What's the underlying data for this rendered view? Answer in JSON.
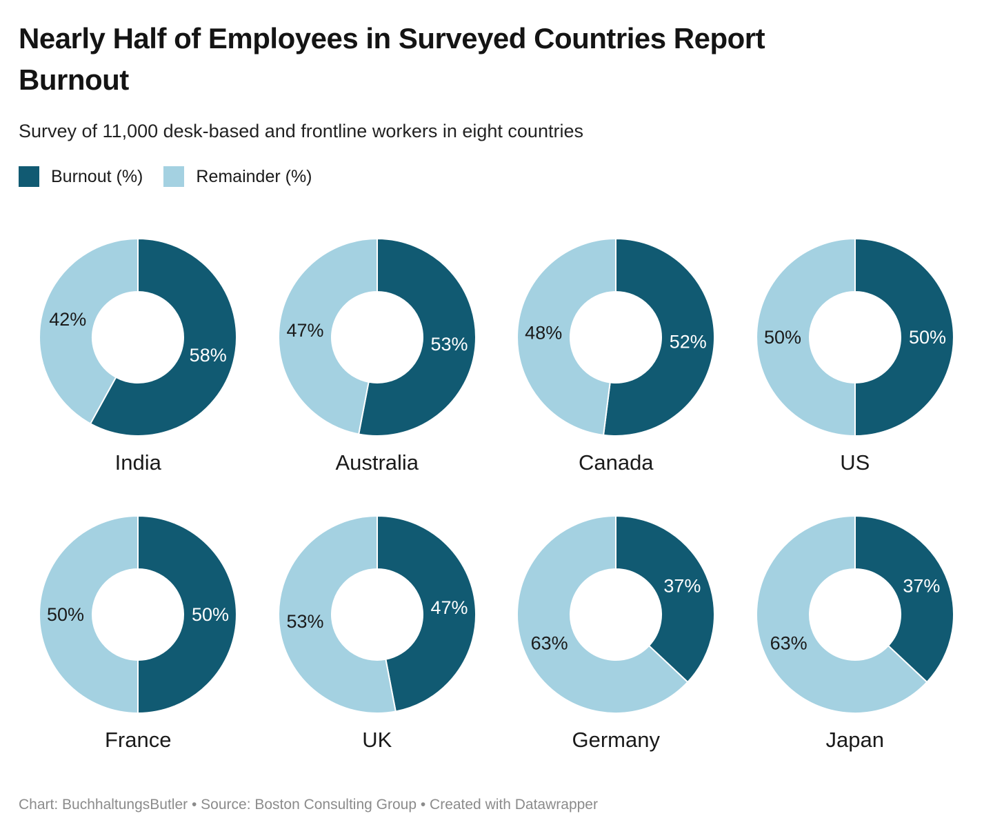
{
  "header": {
    "title": "Nearly Half of Employees in Surveyed Countries Report Burnout",
    "title_lines": [
      "Nearly Half of Employees in Surveyed Countries Report",
      "Burnout"
    ],
    "subtitle": "Survey of 11,000 desk-based and frontline workers in eight countries"
  },
  "legend": {
    "items": [
      {
        "key": "burnout",
        "label": "Burnout (%)",
        "color": "#115a72"
      },
      {
        "key": "remainder",
        "label": "Remainder (%)",
        "color": "#a4d1e1"
      }
    ]
  },
  "footer": {
    "text": "Chart: BuchhaltungsButler • Source: Boston Consulting Group • Created with Datawrapper"
  },
  "chart_data": {
    "type": "pie",
    "variant": "donut_small_multiples",
    "title": "Nearly Half of Employees in Surveyed Countries Report Burnout",
    "subtitle": "Survey of 11,000 desk-based and frontline workers in eight countries",
    "legend_entries": [
      "Burnout (%)",
      "Remainder (%)"
    ],
    "legend_position": "top-left",
    "start_angle": "top",
    "direction": "clockwise",
    "inner_radius_ratio": 0.46,
    "unit": "%",
    "colors": {
      "burnout": "#115a72",
      "remainder": "#a4d1e1"
    },
    "label_text_colors": {
      "burnout": "#ffffff",
      "remainder": "#1a1a1a"
    },
    "charts": [
      {
        "country": "India",
        "burnout": 58,
        "remainder": 42
      },
      {
        "country": "Australia",
        "burnout": 53,
        "remainder": 47
      },
      {
        "country": "Canada",
        "burnout": 52,
        "remainder": 48
      },
      {
        "country": "US",
        "burnout": 50,
        "remainder": 50
      },
      {
        "country": "France",
        "burnout": 50,
        "remainder": 50
      },
      {
        "country": "UK",
        "burnout": 47,
        "remainder": 53
      },
      {
        "country": "Germany",
        "burnout": 37,
        "remainder": 63
      },
      {
        "country": "Japan",
        "burnout": 37,
        "remainder": 63
      }
    ]
  }
}
